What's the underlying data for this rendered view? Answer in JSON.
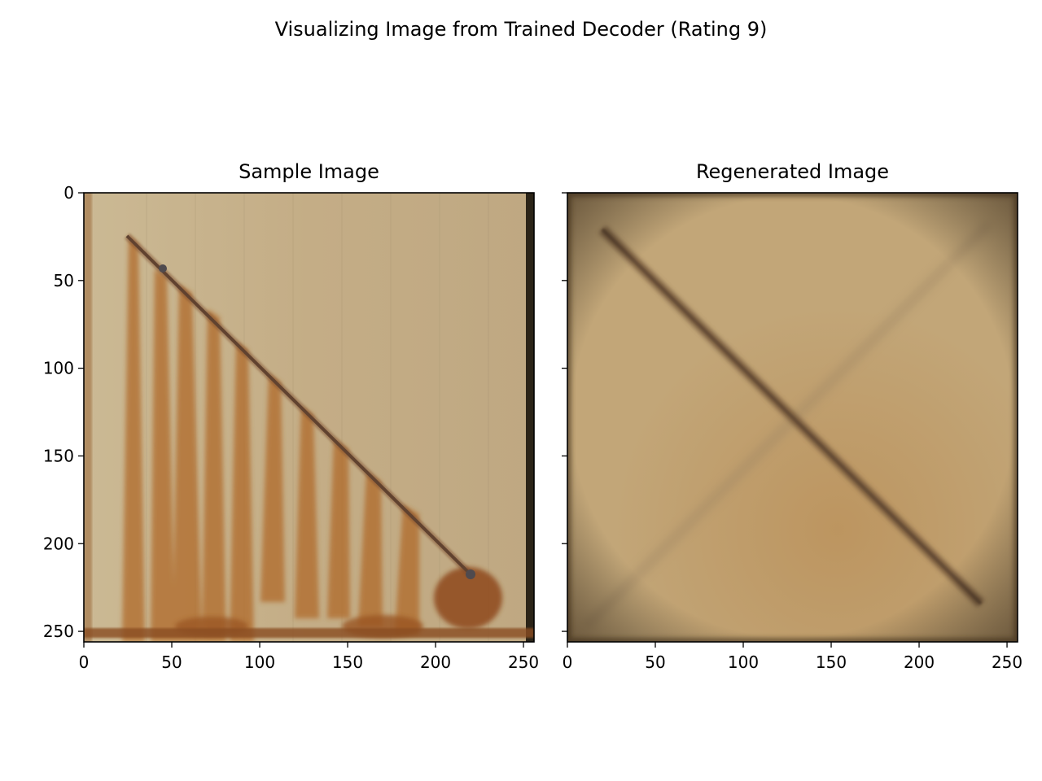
{
  "figure": {
    "suptitle": "Visualizing Image from Trained Decoder (Rating 9)"
  },
  "panels": [
    {
      "title": "Sample Image",
      "x_ticks": [
        "0",
        "50",
        "100",
        "150",
        "200",
        "250"
      ],
      "y_ticks": [
        "0",
        "50",
        "100",
        "150",
        "200",
        "250"
      ],
      "image": {
        "description": "rusted panel with diagonal scribe from upper-left to lower-right and vertical rust streaks below it",
        "base_color": "#c7b28a",
        "rust_color": "#a85a22",
        "scribe_color": "#5a4b44"
      }
    },
    {
      "title": "Regenerated Image",
      "x_ticks": [
        "0",
        "50",
        "100",
        "150",
        "200",
        "250"
      ],
      "y_ticks": [
        "",
        "",
        "",
        "",
        "",
        ""
      ],
      "image": {
        "description": "blurred reconstruction with a dark diagonal line and a faint crossing diagonal",
        "base_color": "#c2a678",
        "line_color": "#6f5338",
        "faint_line_color": "#9c8463"
      }
    }
  ],
  "axis": {
    "xlim": [
      0,
      256
    ],
    "ylim": [
      256,
      0
    ],
    "tick_values": [
      0,
      50,
      100,
      150,
      200,
      250
    ]
  }
}
